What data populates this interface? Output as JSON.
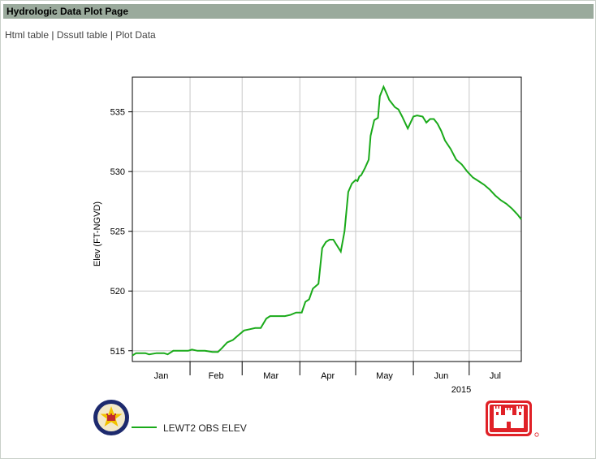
{
  "page": {
    "title": "Hydrologic Data Plot Page",
    "links": [
      "Html table",
      "Dssutl table",
      "Plot Data"
    ],
    "separator": "|"
  },
  "colors": {
    "header_bg": "#9aaa9c",
    "series": "#1aaa1a",
    "grid": "#c8c8c8"
  },
  "logos": [
    "usace-district-seal",
    "usace-castle-logo"
  ],
  "chart_data": {
    "type": "line",
    "ylabel": "Elev (FT-NGVD)",
    "xlabel": "",
    "year_label": "2015",
    "x_ticks": [
      "Jan",
      "Feb",
      "Mar",
      "Apr",
      "May",
      "Jun",
      "Jul"
    ],
    "y_ticks": [
      515,
      520,
      525,
      530,
      535
    ],
    "ylim": [
      514.1,
      537.9
    ],
    "xlim": [
      "2015-01-01",
      "2015-07-29"
    ],
    "grid": true,
    "legend": "bottom-left",
    "series": [
      {
        "name": "LEWT2 OBS ELEV",
        "x": [
          "2015-01-01",
          "2015-01-03",
          "2015-01-05",
          "2015-01-08",
          "2015-01-10",
          "2015-01-14",
          "2015-01-18",
          "2015-01-20",
          "2015-01-23",
          "2015-01-27",
          "2015-01-31",
          "2015-02-02",
          "2015-02-05",
          "2015-02-09",
          "2015-02-13",
          "2015-02-16",
          "2015-02-18",
          "2015-02-21",
          "2015-02-24",
          "2015-02-27",
          "2015-03-02",
          "2015-03-05",
          "2015-03-08",
          "2015-03-11",
          "2015-03-14",
          "2015-03-16",
          "2015-03-18",
          "2015-03-20",
          "2015-03-24",
          "2015-03-27",
          "2015-03-30",
          "2015-04-02",
          "2015-04-04",
          "2015-04-06",
          "2015-04-08",
          "2015-04-11",
          "2015-04-13",
          "2015-04-15",
          "2015-04-17",
          "2015-04-19",
          "2015-04-21",
          "2015-04-23",
          "2015-04-25",
          "2015-04-27",
          "2015-04-29",
          "2015-05-01",
          "2015-05-02",
          "2015-05-03",
          "2015-05-04",
          "2015-05-06",
          "2015-05-08",
          "2015-05-09",
          "2015-05-11",
          "2015-05-13",
          "2015-05-14",
          "2015-05-16",
          "2015-05-18",
          "2015-05-19",
          "2015-05-20",
          "2015-05-21",
          "2015-05-22",
          "2015-05-24",
          "2015-05-26",
          "2015-05-29",
          "2015-06-01",
          "2015-06-03",
          "2015-06-06",
          "2015-06-08",
          "2015-06-10",
          "2015-06-12",
          "2015-06-14",
          "2015-06-16",
          "2015-06-18",
          "2015-06-21",
          "2015-06-24",
          "2015-06-27",
          "2015-06-30",
          "2015-07-03",
          "2015-07-06",
          "2015-07-09",
          "2015-07-12",
          "2015-07-15",
          "2015-07-18",
          "2015-07-21",
          "2015-07-24",
          "2015-07-27",
          "2015-07-29"
        ],
        "y": [
          514.6,
          514.8,
          514.8,
          514.8,
          514.7,
          514.8,
          514.8,
          514.7,
          515.0,
          515.0,
          515.0,
          515.1,
          515.0,
          515.0,
          514.9,
          514.9,
          515.2,
          515.7,
          515.9,
          516.3,
          516.7,
          516.8,
          516.9,
          516.9,
          517.7,
          517.9,
          517.9,
          517.9,
          517.9,
          518.0,
          518.2,
          518.2,
          519.1,
          519.3,
          520.2,
          520.6,
          523.6,
          524.1,
          524.3,
          524.3,
          523.8,
          523.3,
          525.0,
          528.3,
          529.0,
          529.3,
          529.2,
          529.6,
          529.7,
          530.3,
          531.0,
          533.0,
          534.3,
          534.5,
          536.3,
          537.1,
          536.4,
          536.0,
          535.8,
          535.6,
          535.4,
          535.2,
          534.6,
          533.6,
          534.6,
          534.7,
          534.6,
          534.1,
          534.4,
          534.4,
          534.0,
          533.4,
          532.6,
          531.9,
          531.0,
          530.6,
          530.0,
          529.5,
          529.2,
          528.9,
          528.5,
          528.0,
          527.6,
          527.3,
          526.9,
          526.4,
          526.0
        ]
      }
    ]
  }
}
